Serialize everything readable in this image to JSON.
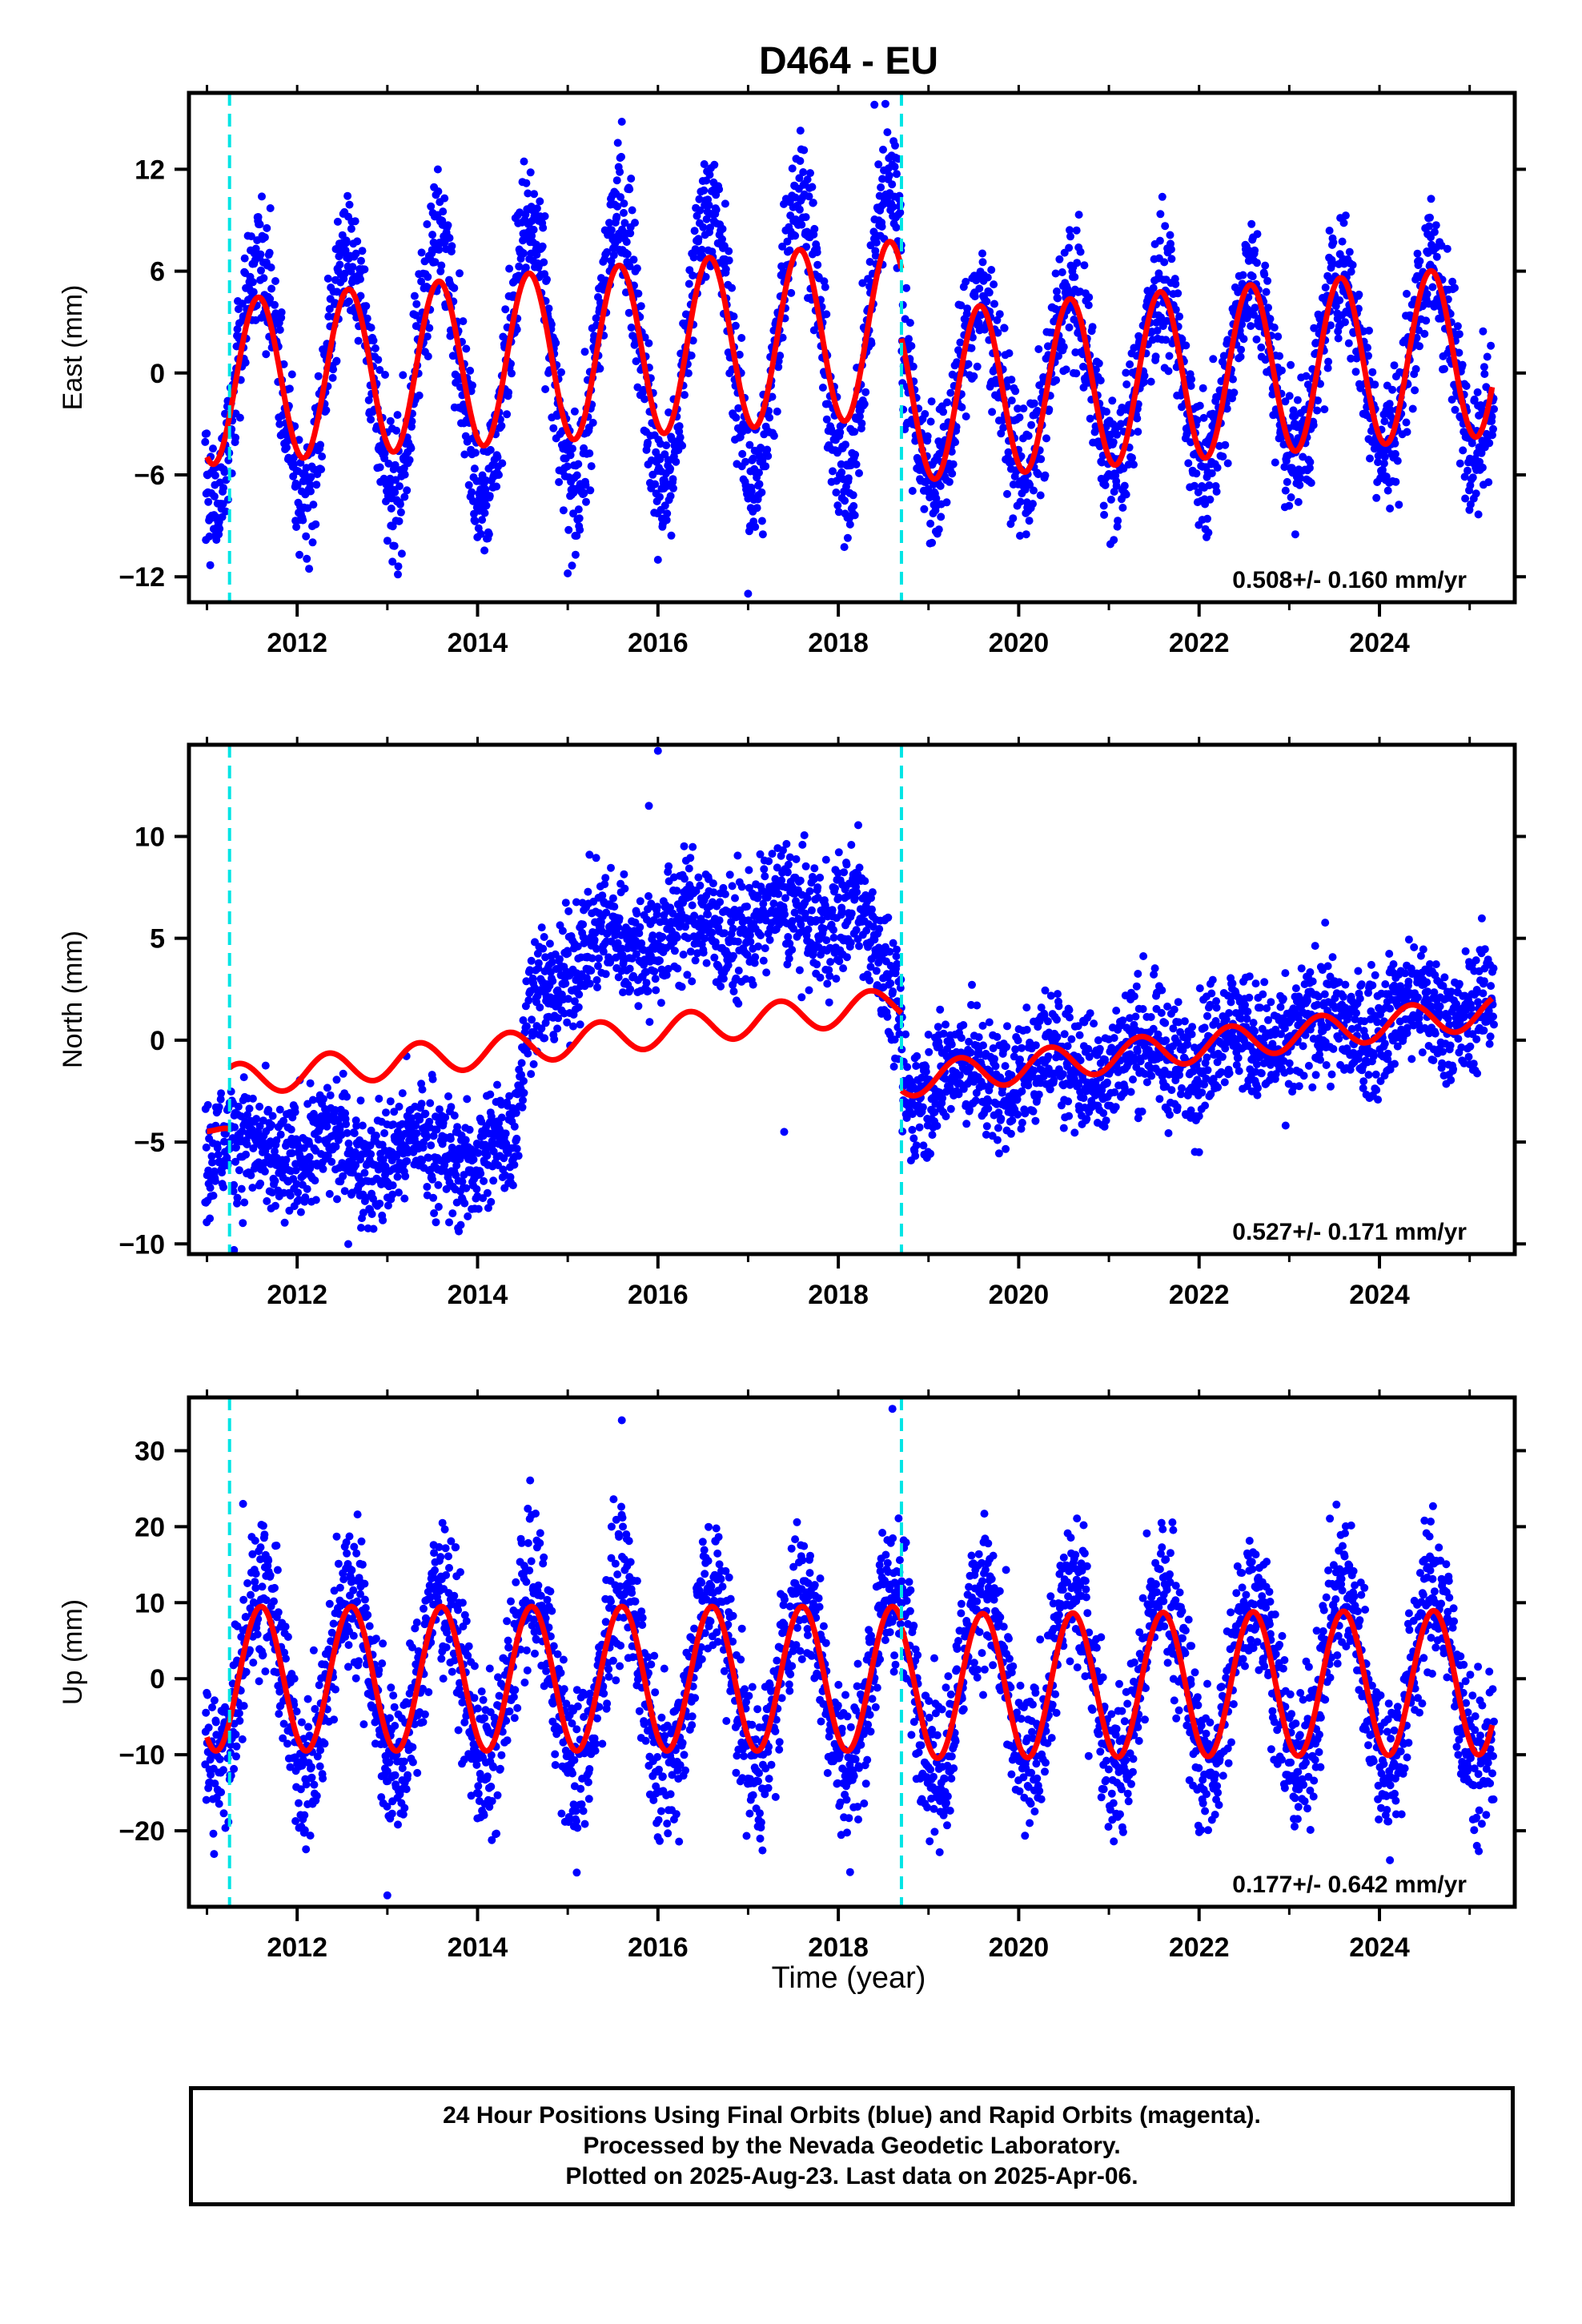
{
  "title": "D464 - EU",
  "xlabel": "Time (year)",
  "footer": {
    "line1": "24 Hour Positions Using Final Orbits (blue) and Rapid Orbits (magenta).",
    "line2": "Processed by the Nevada Geodetic Laboratory.",
    "line3": "Plotted on 2025-Aug-23. Last data on 2025-Apr-06."
  },
  "colors": {
    "data": "#0000ff",
    "model": "#ff0000",
    "steps": "#00e5e5",
    "axes": "#000000"
  },
  "chart_data": [
    {
      "type": "scatter",
      "name": "east",
      "ylabel": "East (mm)",
      "xlim": [
        2010.8,
        2025.5
      ],
      "ylim": [
        -13.5,
        16.5
      ],
      "xticks": [
        2012,
        2014,
        2016,
        2018,
        2020,
        2022,
        2024
      ],
      "yticks": [
        -12,
        -6,
        0,
        6,
        12
      ],
      "ytick_labels": [
        "−12",
        "−6",
        "0",
        "6",
        "12"
      ],
      "rate_label": "0.508+/- 0.160 mm/yr",
      "step_lines": [
        2011.25,
        2018.7
      ],
      "model": {
        "segments": [
          {
            "from": 2011.0,
            "to": 2018.7,
            "offset": -0.6,
            "trend": 0.508,
            "amp_start": 4.8,
            "amp_end": 5.2,
            "center_start": -0.6,
            "center_end": 2.6,
            "phase": 2011.32
          },
          {
            "from": 2018.7,
            "to": 2025.25,
            "offset": -1.4,
            "trend": 0.508,
            "amp_start": 5.0,
            "amp_end": 5.0,
            "center_start": -1.4,
            "center_end": 1.3,
            "phase": 2011.32
          }
        ]
      },
      "scatter_model": {
        "amp_start": 6.8,
        "amp_end": 8.8,
        "amp_after": 5.2,
        "noise": 2.0,
        "outliers": [
          [
            2015.6,
            14.8
          ],
          [
            2018.4,
            15.8
          ],
          [
            2017.0,
            -13.0
          ],
          [
            2015.0,
            -11.8
          ],
          [
            2016.0,
            -11.0
          ]
        ]
      }
    },
    {
      "type": "scatter",
      "name": "north",
      "ylabel": "North (mm)",
      "xlim": [
        2010.8,
        2025.5
      ],
      "ylim": [
        -10.5,
        14.5
      ],
      "xticks": [
        2012,
        2014,
        2016,
        2018,
        2020,
        2022,
        2024
      ],
      "yticks": [
        -10,
        -5,
        0,
        5,
        10
      ],
      "ytick_labels": [
        "−10",
        "−5",
        "0",
        "5",
        "10"
      ],
      "rate_label": "0.527+/- 0.171 mm/yr",
      "step_lines": [
        2011.25,
        2018.7
      ],
      "model": {
        "segments": [
          {
            "from": 2011.0,
            "to": 2011.25,
            "offset": -4.5,
            "trend": -4.0,
            "amp_start": 0.8,
            "amp_end": 0.8,
            "center_start": -4.0,
            "center_end": -5.0,
            "phase": 2011.1
          },
          {
            "from": 2011.25,
            "to": 2018.7,
            "offset": -2.2,
            "trend": 0.527,
            "amp_start": 0.8,
            "amp_end": 0.8,
            "center_start": -2.0,
            "center_end": 1.8,
            "phase": 2011.1
          },
          {
            "from": 2018.7,
            "to": 2025.25,
            "offset": -2.0,
            "trend": 0.527,
            "amp_start": 0.8,
            "amp_end": 0.8,
            "center_start": -2.0,
            "center_end": 1.4,
            "phase": 2011.1
          }
        ]
      },
      "scatter_model": {
        "levels": [
          [
            2011.0,
            -5.5
          ],
          [
            2014.4,
            -5.5
          ],
          [
            2014.6,
            2.5
          ],
          [
            2015.5,
            5.0
          ],
          [
            2018.2,
            6.5
          ],
          [
            2018.7,
            1.0
          ],
          [
            2018.72,
            -2.2
          ],
          [
            2021.0,
            -1.0
          ],
          [
            2025.2,
            1.8
          ]
        ],
        "noise": 1.5,
        "outliers": [
          [
            2016.0,
            14.2
          ],
          [
            2015.9,
            11.5
          ],
          [
            2011.3,
            -10.3
          ],
          [
            2017.4,
            -4.5
          ],
          [
            2022.0,
            -5.5
          ]
        ]
      }
    },
    {
      "type": "scatter",
      "name": "up",
      "ylabel": "Up (mm)",
      "xlim": [
        2010.8,
        2025.5
      ],
      "ylim": [
        -30,
        37
      ],
      "xticks": [
        2012,
        2014,
        2016,
        2018,
        2020,
        2022,
        2024
      ],
      "yticks": [
        -20,
        -10,
        0,
        10,
        20,
        30
      ],
      "ytick_labels": [
        "−20",
        "−10",
        "0",
        "10",
        "20",
        "30"
      ],
      "rate_label": "0.177+/- 0.642 mm/yr",
      "step_lines": [
        2011.25,
        2018.7
      ],
      "model": {
        "segments": [
          {
            "from": 2011.0,
            "to": 2018.7,
            "offset": 0.0,
            "trend": 0.177,
            "amp_start": 9.5,
            "amp_end": 9.5,
            "center_start": 0.0,
            "center_end": 0.0,
            "phase": 2011.35
          },
          {
            "from": 2018.7,
            "to": 2025.25,
            "offset": -1.0,
            "trend": 0.177,
            "amp_start": 9.5,
            "amp_end": 9.5,
            "center_start": -1.0,
            "center_end": -0.5,
            "phase": 2011.35
          }
        ]
      },
      "scatter_model": {
        "amp": 12.0,
        "noise": 5.0,
        "outliers": [
          [
            2018.6,
            35.5
          ],
          [
            2015.6,
            34.0
          ],
          [
            2013.0,
            -28.5
          ],
          [
            2015.1,
            -25.5
          ],
          [
            2011.4,
            23.0
          ]
        ]
      }
    }
  ]
}
